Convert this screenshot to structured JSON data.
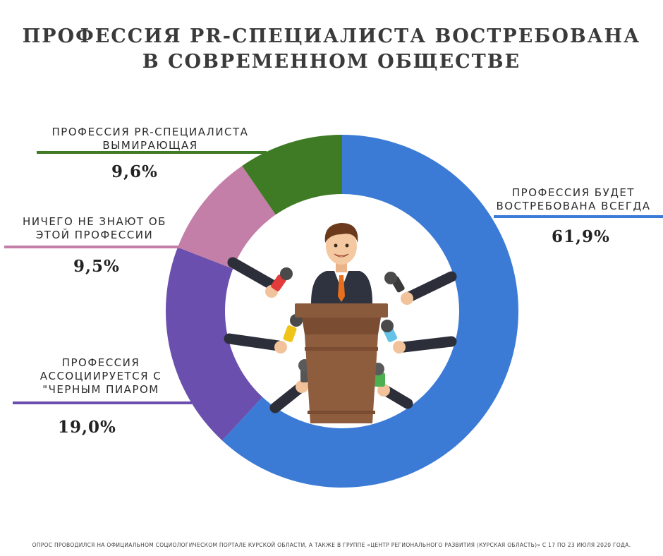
{
  "title": {
    "line1": "ПРОФЕССИЯ PR-СПЕЦИАЛИСТА ВОСТРЕБОВАНА",
    "line2": "В СОВРЕМЕННОМ ОБЩЕСТВЕ"
  },
  "chart_data": {
    "type": "pie",
    "donut": true,
    "unit": "%",
    "categories": [
      "ПРОФЕССИЯ БУДЕТ ВОСТРЕБОВАНА ВСЕГДА",
      "ПРОФЕССИЯ АССОЦИИРУЕТСЯ С \"ЧЕРНЫМ ПИАРОМ",
      "НИЧЕГО НЕ ЗНАЮТ ОБ ЭТОЙ ПРОФЕССИИ",
      "ПРОФЕССИЯ PR-СПЕЦИАЛИСТА ВЫМИРАЮЩАЯ"
    ],
    "values": [
      61.9,
      19.0,
      9.5,
      9.6
    ],
    "value_labels": [
      "61,9%",
      "19,0%",
      "9,5%",
      "9,6%"
    ],
    "colors": [
      "#3b7bd6",
      "#6a4fae",
      "#c47fa8",
      "#3f7a24"
    ],
    "start": "12 o'clock",
    "direction": "clockwise"
  },
  "labels": {
    "always": {
      "line1": "ПРОФЕССИЯ БУДЕТ",
      "line2": "ВОСТРЕБОВАНА ВСЕГДА",
      "value": "61,9%"
    },
    "black_pr": {
      "line1": "ПРОФЕССИЯ",
      "line2": "АССОЦИИРУЕТСЯ С",
      "line3": "\"ЧЕРНЫМ ПИАРОМ",
      "value": "19,0%"
    },
    "unknown": {
      "line1": "НИЧЕГО НЕ ЗНАЮТ ОБ",
      "line2": "ЭТОЙ ПРОФЕССИИ",
      "value": "9,5%"
    },
    "dying": {
      "line1": "ПРОФЕССИЯ PR-СПЕЦИАЛИСТА",
      "line2": "ВЫМИРАЮЩАЯ",
      "value": "9,6%"
    }
  },
  "footer": "ОПРОС ПРОВОДИЛСЯ НА ОФИЦИАЛЬНОМ СОЦИОЛОГИЧЕСКОМ ПОРТАЛЕ КУРСКОЙ ОБЛАСТИ, А ТАКЖЕ В ГРУППЕ «ЦЕНТР РЕГИОНАЛЬНОГО РАЗВИТИЯ (КУРСКАЯ ОБЛАСТЬ)» С 17 ПО 23 ИЮЛЯ 2020 ГОДА.",
  "illustration": {
    "subject": "speaker-at-podium-with-microphones"
  }
}
